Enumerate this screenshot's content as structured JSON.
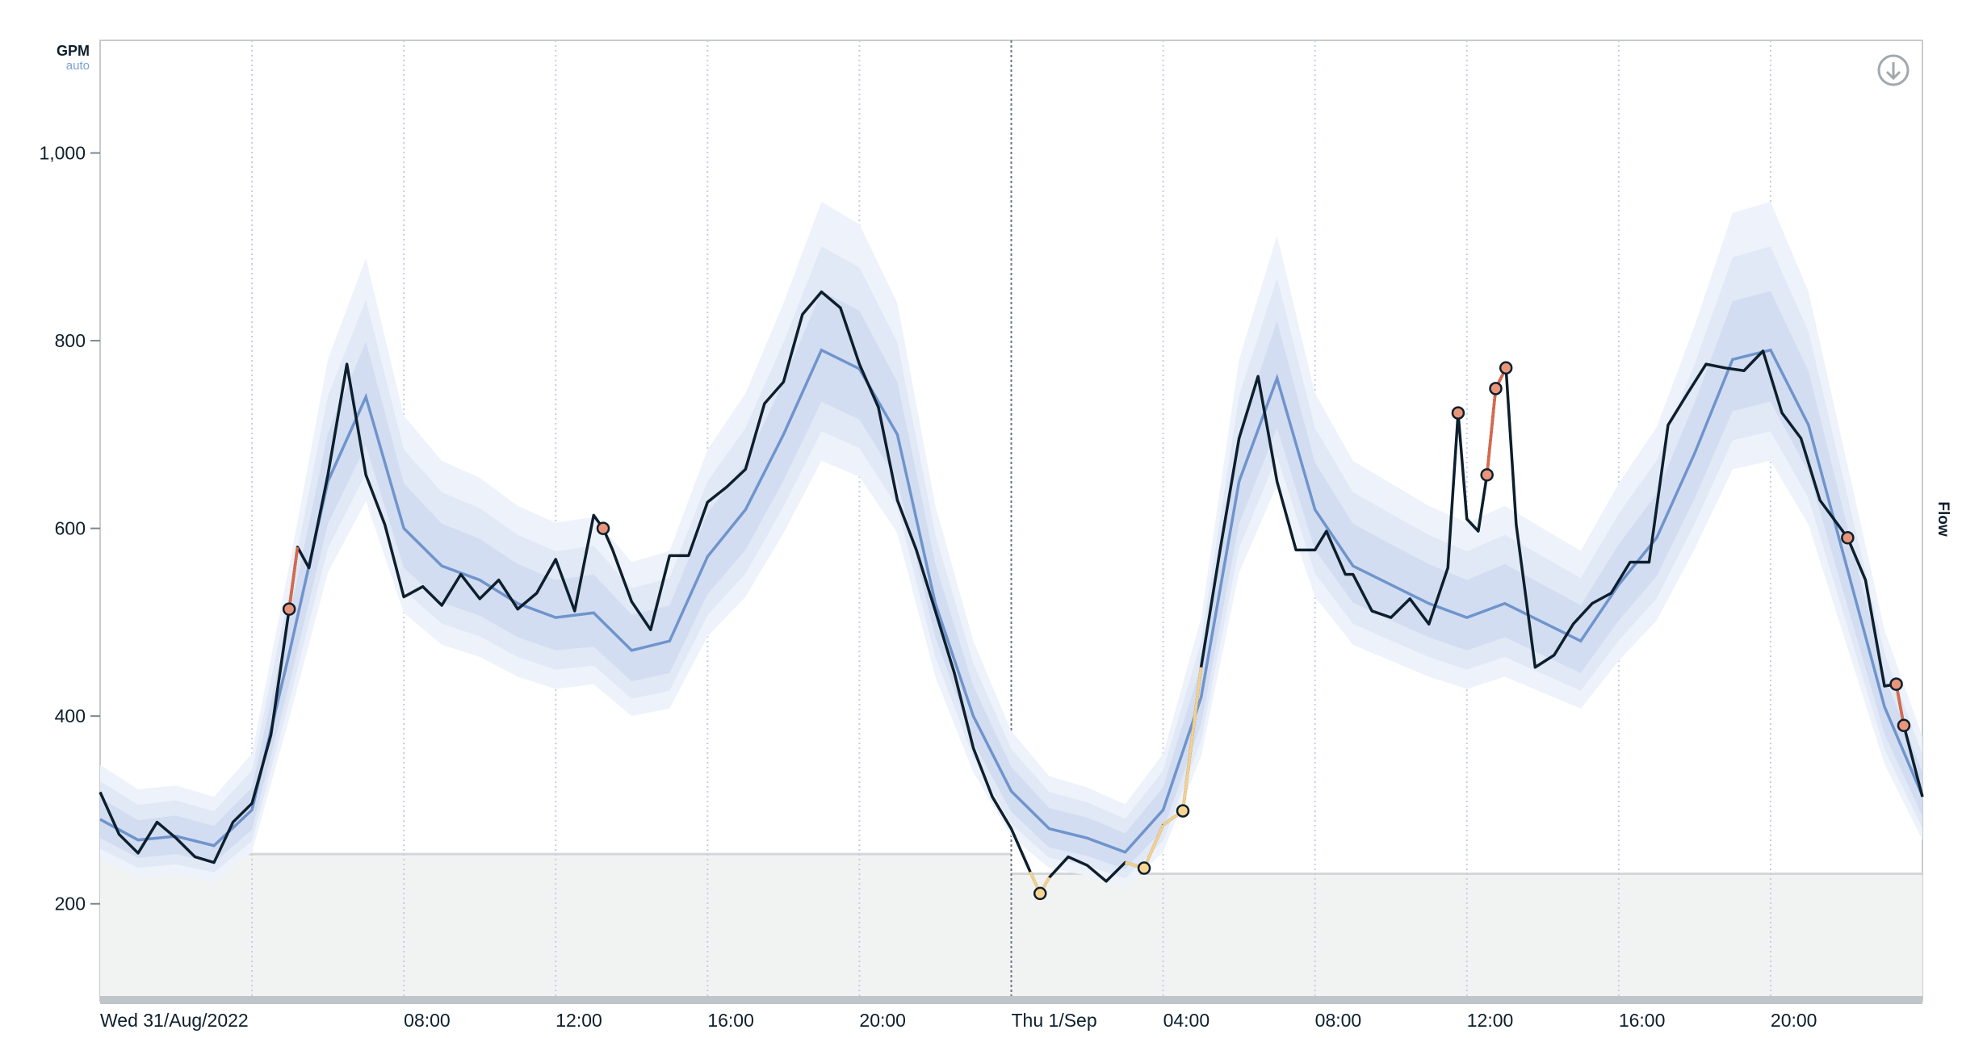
{
  "chart_data": {
    "type": "line",
    "ylabel_unit": "GPM",
    "ylabel_mode": "auto",
    "right_label": "Flow",
    "ylim": [
      100,
      1120
    ],
    "xlim_hours": [
      0,
      48
    ],
    "y_ticks": [
      {
        "v": 200,
        "label": "200"
      },
      {
        "v": 400,
        "label": "400"
      },
      {
        "v": 600,
        "label": "600"
      },
      {
        "v": 800,
        "label": "800"
      },
      {
        "v": 1000,
        "label": "1,000"
      }
    ],
    "x_ticks": [
      {
        "h": 0,
        "label": "Wed 31/Aug/2022"
      },
      {
        "h": 4,
        "label": ""
      },
      {
        "h": 8,
        "label": "08:00"
      },
      {
        "h": 12,
        "label": "12:00"
      },
      {
        "h": 16,
        "label": "16:00"
      },
      {
        "h": 20,
        "label": "20:00"
      },
      {
        "h": 24,
        "label": "Thu 1/Sep"
      },
      {
        "h": 28,
        "label": "04:00"
      },
      {
        "h": 32,
        "label": "08:00"
      },
      {
        "h": 36,
        "label": "12:00"
      },
      {
        "h": 40,
        "label": "16:00"
      },
      {
        "h": 44,
        "label": "20:00"
      }
    ],
    "grid": "vertical dotted",
    "colors": {
      "actual": "#0d1f2d",
      "expected": "#6f94cc",
      "band": "#c9d6ee",
      "threshold": "#f1f3f2",
      "high_anomaly": "#d9694a",
      "low_anomaly": "#f4d08a"
    },
    "thresholds": [
      {
        "from_h": 0,
        "to_h": 24,
        "value": 253
      },
      {
        "from_h": 24,
        "to_h": 48,
        "value": 232
      }
    ],
    "expected_hourly": [
      290,
      268,
      272,
      262,
      300,
      470,
      650,
      740,
      600,
      560,
      545,
      520,
      505,
      510,
      470,
      480,
      570,
      620,
      700,
      790,
      770,
      700,
      520,
      400,
      320,
      280,
      270,
      255,
      300,
      420,
      650,
      760,
      620,
      560,
      540,
      520,
      505,
      520,
      500,
      480,
      540,
      590,
      680,
      780,
      790,
      710,
      560,
      410,
      315
    ],
    "band_outer_upper": [
      348,
      322,
      326,
      314,
      360,
      564,
      780,
      888,
      720,
      672,
      654,
      624,
      606,
      612,
      564,
      576,
      684,
      744,
      840,
      948,
      924,
      840,
      624,
      480,
      384,
      336,
      324,
      306,
      360,
      504,
      780,
      912,
      744,
      672,
      648,
      624,
      606,
      624,
      600,
      576,
      648,
      708,
      816,
      936,
      948,
      852,
      672,
      492,
      378
    ],
    "band_outer_lower": [
      247,
      228,
      231,
      223,
      255,
      400,
      553,
      629,
      510,
      476,
      463,
      442,
      429,
      434,
      400,
      408,
      485,
      527,
      595,
      672,
      655,
      595,
      442,
      340,
      272,
      238,
      230,
      217,
      255,
      357,
      553,
      646,
      527,
      476,
      459,
      442,
      429,
      442,
      425,
      408,
      459,
      502,
      578,
      663,
      672,
      604,
      476,
      349,
      268
    ],
    "band_inner_upper": [
      313,
      289,
      294,
      283,
      324,
      508,
      702,
      799,
      648,
      605,
      589,
      562,
      545,
      551,
      508,
      518,
      616,
      670,
      756,
      853,
      832,
      756,
      562,
      432,
      346,
      302,
      292,
      275,
      324,
      454,
      702,
      821,
      670,
      605,
      583,
      562,
      545,
      562,
      540,
      518,
      583,
      637,
      734,
      842,
      853,
      767,
      605,
      443,
      340
    ],
    "band_inner_lower": [
      270,
      249,
      253,
      244,
      279,
      437,
      605,
      688,
      558,
      521,
      507,
      484,
      470,
      474,
      437,
      446,
      530,
      577,
      651,
      735,
      716,
      651,
      484,
      372,
      298,
      260,
      251,
      237,
      279,
      391,
      605,
      707,
      577,
      521,
      502,
      484,
      470,
      484,
      465,
      446,
      502,
      549,
      632,
      725,
      735,
      660,
      521,
      381,
      293
    ],
    "actual": [
      [
        0,
        319
      ],
      [
        0.5,
        274
      ],
      [
        1,
        254
      ],
      [
        1.5,
        287
      ],
      [
        2,
        270
      ],
      [
        2.5,
        250
      ],
      [
        3,
        244
      ],
      [
        3.5,
        287
      ],
      [
        4,
        307
      ],
      [
        4.5,
        380
      ],
      [
        4.98,
        514
      ],
      [
        5.2,
        580
      ],
      [
        5.5,
        558
      ],
      [
        6,
        657
      ],
      [
        6.5,
        775
      ],
      [
        7,
        657
      ],
      [
        7.5,
        604
      ],
      [
        8,
        527
      ],
      [
        8.5,
        538
      ],
      [
        9,
        518
      ],
      [
        9.5,
        551
      ],
      [
        10,
        525
      ],
      [
        10.5,
        545
      ],
      [
        11,
        514
      ],
      [
        11.5,
        531
      ],
      [
        12,
        567
      ],
      [
        12.5,
        512
      ],
      [
        13,
        614
      ],
      [
        13.25,
        600
      ],
      [
        13.5,
        577
      ],
      [
        14,
        522
      ],
      [
        14.5,
        492
      ],
      [
        15,
        571
      ],
      [
        15.5,
        571
      ],
      [
        16,
        628
      ],
      [
        16.5,
        644
      ],
      [
        17,
        663
      ],
      [
        17.5,
        733
      ],
      [
        18,
        756
      ],
      [
        18.5,
        828
      ],
      [
        19,
        852
      ],
      [
        19.5,
        835
      ],
      [
        20,
        775
      ],
      [
        20.5,
        729
      ],
      [
        21,
        630
      ],
      [
        21.5,
        577
      ],
      [
        22,
        512
      ],
      [
        22.5,
        446
      ],
      [
        23,
        366
      ],
      [
        23.5,
        314
      ],
      [
        24,
        280
      ],
      [
        24.5,
        234
      ],
      [
        24.76,
        211
      ],
      [
        25,
        228
      ],
      [
        25.5,
        250
      ],
      [
        26,
        241
      ],
      [
        26.5,
        224
      ],
      [
        27,
        244
      ],
      [
        27.5,
        238
      ],
      [
        28,
        284
      ],
      [
        28.52,
        299
      ],
      [
        29,
        452
      ],
      [
        29.5,
        577
      ],
      [
        30,
        696
      ],
      [
        30.5,
        762
      ],
      [
        31,
        650
      ],
      [
        31.5,
        577
      ],
      [
        32,
        577
      ],
      [
        32.3,
        597
      ],
      [
        32.8,
        551
      ],
      [
        33,
        551
      ],
      [
        33.5,
        512
      ],
      [
        34,
        505
      ],
      [
        34.5,
        525
      ],
      [
        35,
        498
      ],
      [
        35.5,
        558
      ],
      [
        35.77,
        723
      ],
      [
        36,
        610
      ],
      [
        36.3,
        597
      ],
      [
        36.53,
        657
      ],
      [
        36.76,
        749
      ],
      [
        37.03,
        771
      ],
      [
        37.3,
        604
      ],
      [
        37.8,
        452
      ],
      [
        38.3,
        465
      ],
      [
        38.8,
        498
      ],
      [
        39.3,
        520
      ],
      [
        39.8,
        531
      ],
      [
        40.3,
        564
      ],
      [
        40.8,
        564
      ],
      [
        41.3,
        710
      ],
      [
        41.8,
        743
      ],
      [
        42.3,
        775
      ],
      [
        42.8,
        771
      ],
      [
        43.3,
        768
      ],
      [
        43.8,
        789
      ],
      [
        44.3,
        723
      ],
      [
        44.8,
        696
      ],
      [
        45.3,
        630
      ],
      [
        46.03,
        590
      ],
      [
        46.5,
        545
      ],
      [
        47,
        432
      ],
      [
        47.31,
        434
      ],
      [
        47.51,
        390
      ],
      [
        48,
        314
      ]
    ],
    "anomalies_high": [
      [
        4.98,
        514
      ],
      [
        13.25,
        600
      ],
      [
        35.77,
        723
      ],
      [
        36.53,
        657
      ],
      [
        36.76,
        749
      ],
      [
        37.03,
        771
      ],
      [
        46.03,
        590
      ],
      [
        47.31,
        434
      ],
      [
        47.51,
        390
      ]
    ],
    "anomalies_low": [
      [
        24.76,
        211
      ],
      [
        27.5,
        238
      ],
      [
        28.52,
        299
      ]
    ]
  },
  "toolbar": {
    "download_icon": "download-icon"
  }
}
